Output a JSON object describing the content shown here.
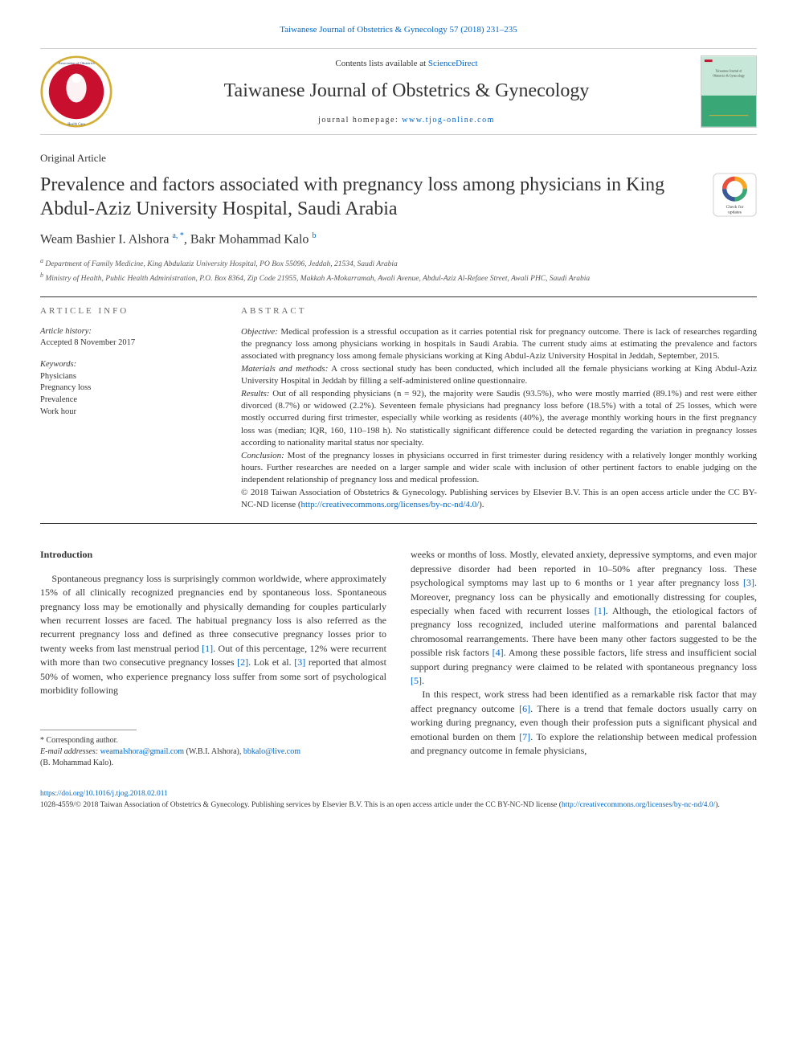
{
  "header": {
    "citation_link": "Taiwanese Journal of Obstetrics & Gynecology 57 (2018) 231–235",
    "contents_prefix": "Contents lists available at ",
    "contents_link": "ScienceDirect",
    "journal_name": "Taiwanese Journal of Obstetrics & Gynecology",
    "homepage_prefix": "journal homepage: ",
    "homepage_link": "www.tjog-online.com",
    "logo_colors": {
      "rim": "#d4af37",
      "center": "#c8102e",
      "text": "#1a3a6e"
    },
    "cover_colors": {
      "top": "#c7e8d8",
      "bottom": "#3aa876",
      "accent": "#c8102e"
    },
    "check_updates_label": "Check for updates",
    "check_updates_colors": {
      "ring_top": "#f6a623",
      "ring_left": "#e94f3d",
      "ring_right": "#3aa876",
      "ring_bottom": "#3b5998"
    }
  },
  "article": {
    "type": "Original Article",
    "title": "Prevalence and factors associated with pregnancy loss among physicians in King Abdul-Aziz University Hospital, Saudi Arabia",
    "authors_html": "Weam Bashier I. Alshora <sup>a, *</sup>, Bakr Mohammad Kalo <sup>b</sup>",
    "affiliations": [
      "a Department of Family Medicine, King Abdulaziz University Hospital, PO Box 55096, Jeddah, 21534, Saudi Arabia",
      "b Ministry of Health, Public Health Administration, P.O. Box 8364, Zip Code 21955, Makkah A-Mokarramah, Awali Avenue, Abdul-Aziz Al-Refaee Street, Awali PHC, Saudi Arabia"
    ]
  },
  "info": {
    "label": "ARTICLE INFO",
    "history_label": "Article history:",
    "history_value": "Accepted 8 November 2017",
    "keywords_label": "Keywords:",
    "keywords": [
      "Physicians",
      "Pregnancy loss",
      "Prevalence",
      "Work hour"
    ]
  },
  "abstract": {
    "label": "ABSTRACT",
    "objective_label": "Objective:",
    "objective": " Medical profession is a stressful occupation as it carries potential risk for pregnancy outcome. There is lack of researches regarding the pregnancy loss among physicians working in hospitals in Saudi Arabia. The current study aims at estimating the prevalence and factors associated with pregnancy loss among female physicians working at King Abdul-Aziz University Hospital in Jeddah, September, 2015.",
    "materials_label": "Materials and methods:",
    "materials": " A cross sectional study has been conducted, which included all the female physicians working at King Abdul-Aziz University Hospital in Jeddah by filling a self-administered online questionnaire.",
    "results_label": "Results:",
    "results": " Out of all responding physicians (n = 92), the majority were Saudis (93.5%), who were mostly married (89.1%) and rest were either divorced (8.7%) or widowed (2.2%). Seventeen female physicians had pregnancy loss before (18.5%) with a total of 25 losses, which were mostly occurred during first trimester, especially while working as residents (40%), the average monthly working hours in the first pregnancy loss was (median; IQR, 160, 110–198 h). No statistically significant difference could be detected regarding the variation in pregnancy losses according to nationality marital status nor specialty.",
    "conclusion_label": "Conclusion:",
    "conclusion": " Most of the pregnancy losses in physicians occurred in first trimester during residency with a relatively longer monthly working hours. Further researches are needed on a larger sample and wider scale with inclusion of other pertinent factors to enable judging on the independent relationship of pregnancy loss and medical profession.",
    "copyright": "© 2018 Taiwan Association of Obstetrics & Gynecology. Publishing services by Elsevier B.V. This is an open access article under the CC BY-NC-ND license (",
    "license_link": "http://creativecommons.org/licenses/by-nc-nd/4.0/",
    "copyright_close": ")."
  },
  "body": {
    "intro_heading": "Introduction",
    "para1_pre": "Spontaneous pregnancy loss is surprisingly common worldwide, where approximately 15% of all clinically recognized pregnancies end by spontaneous loss. Spontaneous pregnancy loss may be emotionally and physically demanding for couples particularly when recurrent losses are faced. The habitual pregnancy loss is also referred as the recurrent pregnancy loss and defined as three consecutive pregnancy losses prior to twenty weeks from last menstrual period ",
    "ref1": "[1]",
    "para1_mid1": ". Out of this percentage, 12% were recurrent with more than two consecutive pregnancy losses ",
    "ref2": "[2]",
    "para1_mid2": ". Lok et al. ",
    "ref3": "[3]",
    "para1_end": " reported that almost 50% of women, who experience pregnancy loss suffer from some sort of psychological morbidity following",
    "para2_pre": "weeks or months of loss. Mostly, elevated anxiety, depressive symptoms, and even major depressive disorder had been reported in 10–50% after pregnancy loss. These psychological symptoms may last up to 6 months or 1 year after pregnancy loss ",
    "ref3b": "[3]",
    "para2_mid1": ". Moreover, pregnancy loss can be physically and emotionally distressing for couples, especially when faced with recurrent losses ",
    "ref1b": "[1]",
    "para2_mid2": ". Although, the etiological factors of pregnancy loss recognized, included uterine malformations and parental balanced chromosomal rearrangements. There have been many other factors suggested to be the possible risk factors ",
    "ref4": "[4]",
    "para2_mid3": ". Among these possible factors, life stress and insufficient social support during pregnancy were claimed to be related with spontaneous pregnancy loss ",
    "ref5": "[5]",
    "para2_end": ".",
    "para3_pre": "In this respect, work stress had been identified as a remarkable risk factor that may affect pregnancy outcome ",
    "ref6": "[6]",
    "para3_mid1": ". There is a trend that female doctors usually carry on working during pregnancy, even though their profession puts a significant physical and emotional burden on them ",
    "ref7": "[7]",
    "para3_end": ". To explore the relationship between medical profession and pregnancy outcome in female physicians,"
  },
  "footnote": {
    "corresponding": "* Corresponding author.",
    "email_label": "E-mail addresses: ",
    "email1": "weamalshora@gmail.com",
    "email1_paren": " (W.B.I. Alshora), ",
    "email2": "bbkalo@live.com",
    "email2_paren": " (B. Mohammad Kalo)."
  },
  "footer": {
    "doi": "https://doi.org/10.1016/j.tjog.2018.02.011",
    "issn_line": "1028-4559/© 2018 Taiwan Association of Obstetrics & Gynecology. Publishing services by Elsevier B.V. This is an open access article under the CC BY-NC-ND license (",
    "license_link": "http://creativecommons.org/licenses/by-nc-nd/4.0/",
    "close": ")."
  }
}
